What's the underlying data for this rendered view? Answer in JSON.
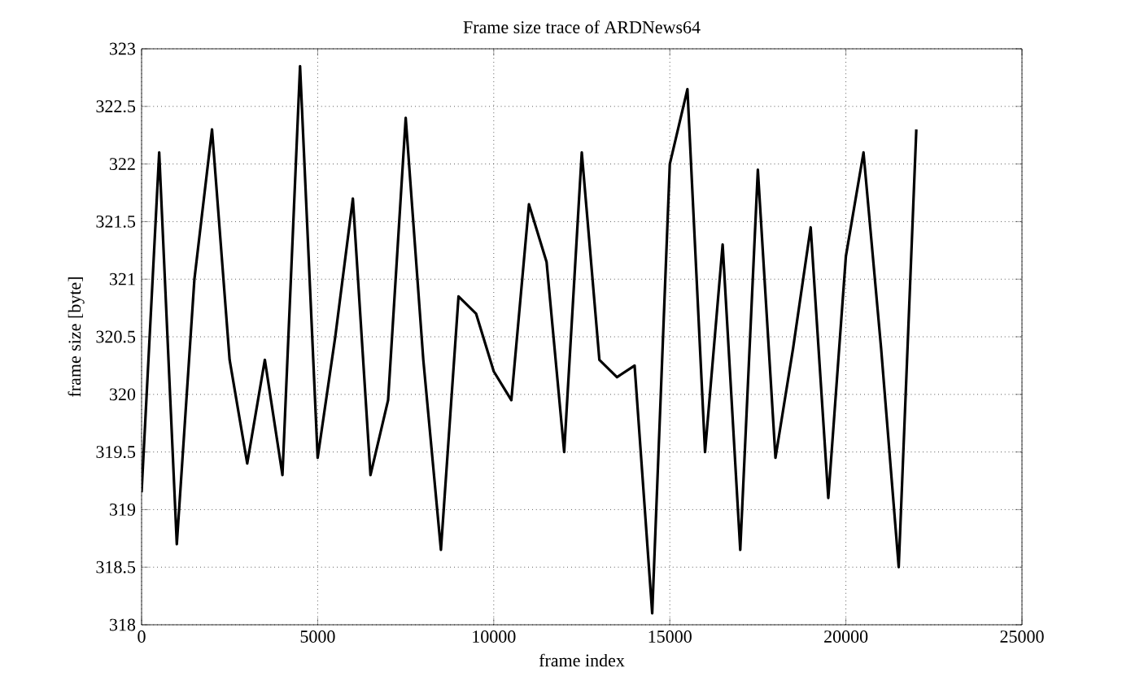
{
  "chart_data": {
    "type": "line",
    "title": "Frame size trace of ARDNews64",
    "xlabel": "frame index",
    "ylabel": "frame size [byte]",
    "x": [
      0,
      500,
      1000,
      1500,
      2000,
      2500,
      3000,
      3500,
      4000,
      4500,
      5000,
      5500,
      6000,
      6500,
      7000,
      7500,
      8000,
      8500,
      9000,
      9500,
      10000,
      10500,
      11000,
      11500,
      12000,
      12500,
      13000,
      13500,
      14000,
      14500,
      15000,
      15500,
      16000,
      16500,
      17000,
      17500,
      18000,
      18500,
      19000,
      19500,
      20000,
      20500,
      21000,
      21500,
      22000
    ],
    "series": [
      {
        "color": "#000000",
        "values": [
          319.15,
          322.1,
          318.7,
          321.0,
          322.3,
          320.3,
          319.4,
          320.3,
          319.3,
          322.85,
          319.45,
          320.5,
          321.7,
          319.3,
          319.95,
          322.4,
          320.3,
          318.65,
          320.85,
          320.7,
          320.2,
          319.95,
          321.65,
          321.15,
          319.5,
          322.1,
          320.3,
          320.15,
          320.25,
          318.1,
          322.0,
          322.65,
          319.5,
          321.3,
          318.65,
          321.95,
          319.45,
          320.4,
          321.45,
          319.1,
          321.2,
          322.1,
          320.4,
          318.5,
          322.3
        ]
      }
    ],
    "xlim": [
      0,
      25000
    ],
    "ylim": [
      318,
      323
    ],
    "xticks": [
      0,
      5000,
      10000,
      15000,
      20000,
      25000
    ],
    "yticks": [
      318,
      318.5,
      319,
      319.5,
      320,
      320.5,
      321,
      321.5,
      322,
      322.5,
      323
    ],
    "grid": true,
    "marker": "none",
    "line_style": "solid"
  }
}
